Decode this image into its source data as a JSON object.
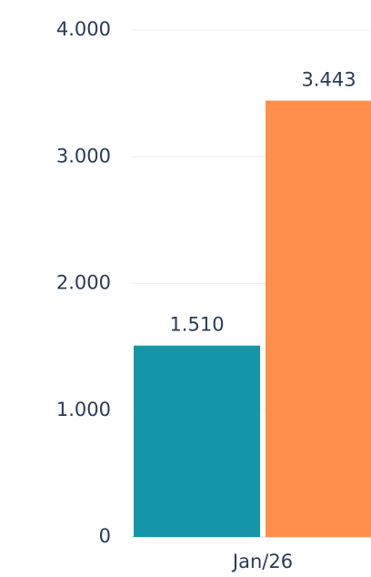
{
  "chart_data": {
    "type": "bar",
    "categories": [
      "Jan/26"
    ],
    "series": [
      {
        "color": "#1596a8",
        "values": [
          1510
        ],
        "value_labels": [
          "1.510"
        ]
      },
      {
        "color": "#ff8f4a",
        "values": [
          3443
        ],
        "value_labels": [
          "3.443"
        ]
      }
    ],
    "ylim": [
      0,
      4000
    ],
    "yticks": [
      0,
      {
        "value": 1000,
        "label": "1.000"
      },
      {
        "value": 2000,
        "label": "2.000"
      },
      {
        "value": 3000,
        "label": "3.000"
      },
      {
        "value": 4000,
        "label": "4.000"
      }
    ],
    "grid": true
  }
}
